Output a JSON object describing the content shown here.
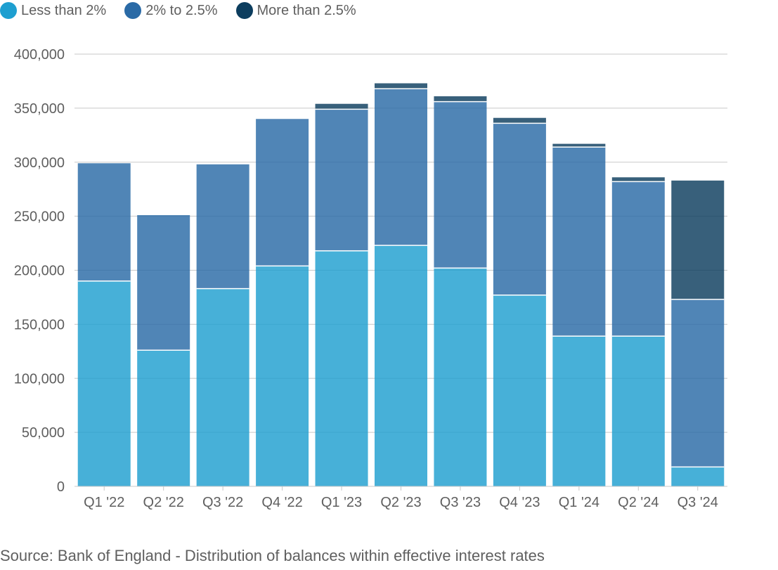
{
  "chart_data": {
    "type": "bar",
    "stacked": true,
    "categories": [
      "Q1 '22",
      "Q2 '22",
      "Q3 '22",
      "Q4 '22",
      "Q1 '23",
      "Q2 '23",
      "Q3 '23",
      "Q4 '23",
      "Q1 '24",
      "Q2 '24",
      "Q3 '24"
    ],
    "series": [
      {
        "name": "Less than 2%",
        "color": "#1e9fd0",
        "values": [
          190000,
          126000,
          183000,
          204000,
          218000,
          223000,
          202000,
          177000,
          139000,
          139000,
          18000
        ]
      },
      {
        "name": "2% to 2.5%",
        "color": "#2a6aa6",
        "values": [
          109000,
          125000,
          115000,
          136000,
          131000,
          145000,
          154000,
          159000,
          175000,
          143000,
          155000
        ]
      },
      {
        "name": "More than 2.5%",
        "color": "#0c3d5e",
        "values": [
          0,
          0,
          0,
          0,
          5000,
          5000,
          5000,
          5000,
          3000,
          4000,
          110000
        ]
      }
    ],
    "ylim": [
      0,
      400000
    ],
    "yticks": [
      0,
      50000,
      100000,
      150000,
      200000,
      250000,
      300000,
      350000,
      400000
    ],
    "ytick_labels": [
      "0",
      "50,000",
      "100,000",
      "150,000",
      "200,000",
      "250,000",
      "300,000",
      "350,000",
      "400,000"
    ],
    "legend_position": "top-left",
    "grid": true,
    "title": "",
    "xlabel": "",
    "ylabel": ""
  },
  "source": "Source: Bank of England - Distribution of balances within effective interest rates"
}
